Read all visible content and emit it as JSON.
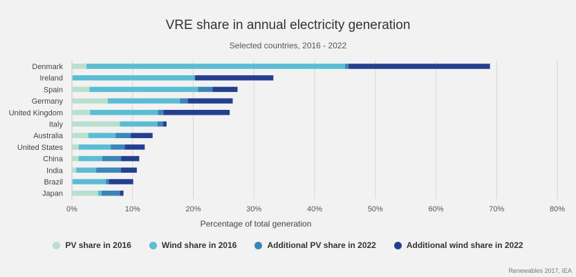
{
  "chart_data": {
    "type": "bar",
    "stacked": true,
    "orientation": "horizontal",
    "title": "VRE share in annual electricity generation",
    "subtitle": "Selected countries, 2016 - 2022",
    "xlabel": "Percentage of total generation",
    "ylabel": "",
    "xlim": [
      0,
      80
    ],
    "xticks": [
      "0%",
      "10%",
      "20%",
      "30%",
      "40%",
      "50%",
      "60%",
      "70%",
      "80%"
    ],
    "grid": true,
    "legend_position": "bottom",
    "categories": [
      "Denmark",
      "Ireland",
      "Spain",
      "Germany",
      "United Kingdom",
      "Italy",
      "Australia",
      "United States",
      "China",
      "India",
      "Brazil",
      "Japan"
    ],
    "series": [
      {
        "name": "PV share in 2016",
        "color": "#b9e0cc",
        "values": [
          2.4,
          0.1,
          2.9,
          5.9,
          3.0,
          7.9,
          2.7,
          1.1,
          1.1,
          0.7,
          0.1,
          4.3
        ]
      },
      {
        "name": "Wind share in 2016",
        "color": "#5bbcd3",
        "values": [
          42.6,
          20.1,
          17.9,
          11.9,
          11.2,
          6.2,
          4.5,
          5.3,
          3.9,
          3.3,
          5.5,
          0.6
        ]
      },
      {
        "name": "Additional PV share in 2022",
        "color": "#3a86b8",
        "values": [
          0.6,
          0.1,
          2.4,
          1.3,
          0.9,
          0.9,
          2.5,
          2.3,
          3.1,
          4.1,
          0.5,
          3.0
        ]
      },
      {
        "name": "Additional wind share in 2022",
        "color": "#243f8f",
        "values": [
          23.3,
          12.9,
          4.1,
          7.4,
          10.9,
          0.6,
          3.6,
          3.3,
          3.0,
          2.6,
          4.0,
          0.6
        ]
      }
    ]
  },
  "footer": {
    "source": "Renewables 2017, IEA"
  }
}
